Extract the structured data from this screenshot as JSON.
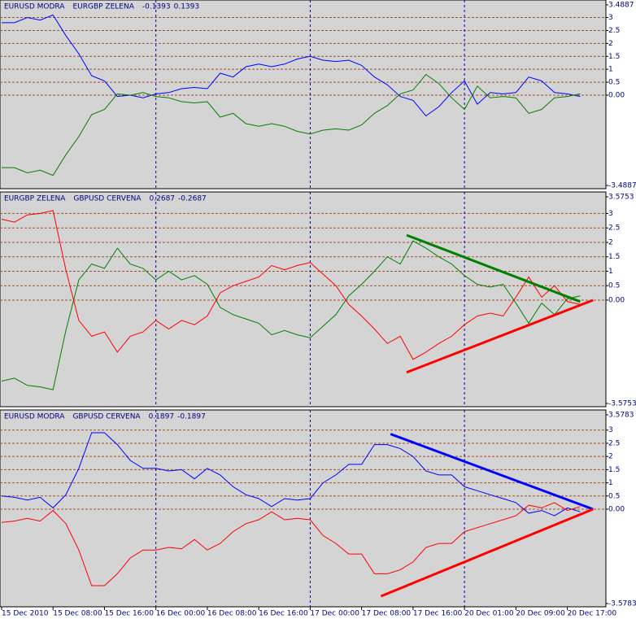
{
  "chart_data": [
    {
      "type": "line",
      "grid": true,
      "x": [
        0,
        2,
        4,
        6,
        8,
        10,
        12,
        14,
        16,
        18,
        20,
        22,
        24,
        26,
        28,
        30,
        32,
        34,
        36,
        38,
        40,
        42,
        44,
        46,
        48,
        50,
        52,
        54,
        56,
        58,
        60,
        62,
        64,
        66,
        68,
        70,
        72,
        74,
        76,
        78,
        80,
        82,
        84,
        86,
        88,
        90
      ],
      "xlim": [
        0,
        94
      ],
      "ylim": [
        -3.4887,
        3.4887
      ],
      "yticks": [
        3.4887,
        3,
        2.5,
        2,
        1.5,
        1,
        0.5,
        {
          "value": 0,
          "label": "0.00"
        },
        -3.4887
      ],
      "separators": [
        24,
        48,
        72
      ],
      "readout": [
        -0.1393,
        0.1393
      ],
      "series": [
        {
          "name": "EURUSD MODRA",
          "color": "#0000ff",
          "values": [
            2.8,
            2.8,
            3.0,
            2.9,
            3.1,
            2.3,
            1.6,
            0.75,
            0.55,
            -0.05,
            0,
            -0.1,
            0.05,
            0.1,
            0.25,
            0.3,
            0.25,
            0.85,
            0.7,
            1.1,
            1.2,
            1.1,
            1.2,
            1.4,
            1.5,
            1.35,
            1.3,
            1.35,
            1.15,
            0.7,
            0.4,
            -0.05,
            -0.2,
            -0.8,
            -0.45,
            0.1,
            0.55,
            -0.35,
            0.1,
            0.05,
            0.1,
            0.7,
            0.55,
            0.1,
            0.05,
            -0.05
          ]
        },
        {
          "name": "EURGBP ZELENA",
          "color": "#008000",
          "values": [
            -2.8,
            -2.8,
            -3.0,
            -2.9,
            -3.1,
            -2.3,
            -1.6,
            -0.75,
            -0.55,
            0.05,
            0,
            0.1,
            -0.05,
            -0.1,
            -0.25,
            -0.3,
            -0.25,
            -0.85,
            -0.7,
            -1.1,
            -1.2,
            -1.1,
            -1.2,
            -1.4,
            -1.5,
            -1.35,
            -1.3,
            -1.35,
            -1.15,
            -0.7,
            -0.4,
            0.05,
            0.2,
            0.8,
            0.45,
            -0.1,
            -0.55,
            0.35,
            -0.1,
            -0.05,
            -0.1,
            -0.7,
            -0.55,
            -0.1,
            -0.05,
            0.05
          ]
        }
      ]
    },
    {
      "type": "line",
      "grid": true,
      "x": [
        0,
        2,
        4,
        6,
        8,
        10,
        12,
        14,
        16,
        18,
        20,
        22,
        24,
        26,
        28,
        30,
        32,
        34,
        36,
        38,
        40,
        42,
        44,
        46,
        48,
        50,
        52,
        54,
        56,
        58,
        60,
        62,
        64,
        66,
        68,
        70,
        72,
        74,
        76,
        78,
        80,
        82,
        84,
        86,
        88,
        90
      ],
      "xlim": [
        0,
        94
      ],
      "ylim": [
        -3.5753,
        3.5753
      ],
      "yticks": [
        3.5753,
        3,
        2.5,
        2,
        1.5,
        1,
        0.5,
        {
          "value": 0,
          "label": "0.00"
        },
        -3.5753
      ],
      "separators": [
        24,
        48,
        72
      ],
      "readout": [
        0.2687,
        -0.2687
      ],
      "series": [
        {
          "name": "EURGBP ZELENA",
          "color": "#008000",
          "values": [
            -2.8,
            -2.7,
            -2.95,
            -3.0,
            -3.1,
            -1.05,
            0.7,
            1.25,
            1.1,
            1.8,
            1.25,
            1.1,
            0.7,
            1.0,
            0.7,
            0.85,
            0.55,
            -0.25,
            -0.5,
            -0.65,
            -0.8,
            -1.2,
            -1.05,
            -1.2,
            -1.3,
            -0.9,
            -0.5,
            0.15,
            0.55,
            1.0,
            1.5,
            1.25,
            2.05,
            1.8,
            1.5,
            1.25,
            0.85,
            0.55,
            0.45,
            0.55,
            -0.1,
            -0.8,
            -0.1,
            -0.5,
            0.05,
            0.15
          ]
        },
        {
          "name": "GBPUSD CERVENA",
          "color": "#ff0000",
          "values": [
            2.8,
            2.7,
            2.95,
            3.0,
            3.1,
            1.05,
            -0.7,
            -1.25,
            -1.1,
            -1.8,
            -1.25,
            -1.1,
            -0.7,
            -1.0,
            -0.7,
            -0.85,
            -0.55,
            0.25,
            0.5,
            0.65,
            0.8,
            1.2,
            1.05,
            1.2,
            1.3,
            0.9,
            0.5,
            -0.15,
            -0.55,
            -1.0,
            -1.5,
            -1.25,
            -2.05,
            -1.8,
            -1.5,
            -1.25,
            -0.85,
            -0.55,
            -0.45,
            -0.55,
            0.1,
            0.8,
            0.1,
            0.5,
            -0.05,
            -0.15
          ]
        }
      ],
      "trendlines": [
        {
          "color": "#008000",
          "x": [
            63,
            90
          ],
          "values": [
            2.25,
            -0.05
          ]
        },
        {
          "color": "#ff0000",
          "x": [
            63,
            92
          ],
          "values": [
            -2.5,
            0
          ]
        }
      ]
    },
    {
      "type": "line",
      "grid": true,
      "x": [
        0,
        2,
        4,
        6,
        8,
        10,
        12,
        14,
        16,
        18,
        20,
        22,
        24,
        26,
        28,
        30,
        32,
        34,
        36,
        38,
        40,
        42,
        44,
        46,
        48,
        50,
        52,
        54,
        56,
        58,
        60,
        62,
        64,
        66,
        68,
        70,
        72,
        74,
        76,
        78,
        80,
        82,
        84,
        86,
        88,
        90
      ],
      "xlim": [
        0,
        94
      ],
      "ylim": [
        -3.5783,
        3.5783
      ],
      "yticks": [
        3.5783,
        3,
        2.5,
        2,
        1.5,
        1,
        0.5,
        {
          "value": 0,
          "label": "0.00"
        },
        -3.5783
      ],
      "separators": [
        24,
        48,
        72
      ],
      "readout": [
        0.1897,
        -0.1897
      ],
      "xticks": [
        {
          "value": 0,
          "label": "15 Dec 2010"
        },
        {
          "value": 8,
          "label": "15 Dec 08:00"
        },
        {
          "value": 16,
          "label": "15 Dec 16:00"
        },
        {
          "value": 24,
          "label": "16 Dec 00:00"
        },
        {
          "value": 32,
          "label": "16 Dec 08:00"
        },
        {
          "value": 40,
          "label": "16 Dec 16:00"
        },
        {
          "value": 48,
          "label": "17 Dec 00:00"
        },
        {
          "value": 56,
          "label": "17 Dec 08:00"
        },
        {
          "value": 64,
          "label": "17 Dec 16:00"
        },
        {
          "value": 72,
          "label": "20 Dec 01:00"
        },
        {
          "value": 80,
          "label": "20 Dec 09:00"
        },
        {
          "value": 88,
          "label": "20 Dec 17:00"
        }
      ],
      "series": [
        {
          "name": "EURUSD MODRA",
          "color": "#0000ff",
          "values": [
            0.5,
            0.45,
            0.35,
            0.45,
            0.05,
            0.55,
            1.55,
            2.9,
            2.9,
            2.45,
            1.85,
            1.55,
            1.55,
            1.45,
            1.5,
            1.15,
            1.55,
            1.3,
            0.85,
            0.55,
            0.4,
            0.1,
            0.4,
            0.35,
            0.4,
            1.0,
            1.3,
            1.7,
            1.7,
            2.45,
            2.45,
            2.3,
            2.0,
            1.45,
            1.3,
            1.3,
            0.85,
            0.7,
            0.55,
            0.4,
            0.25,
            -0.15,
            -0.05,
            -0.25,
            0.05,
            -0.1
          ]
        },
        {
          "name": "GBPUSD CERVENA",
          "color": "#ff0000",
          "values": [
            -0.5,
            -0.45,
            -0.35,
            -0.45,
            -0.05,
            -0.55,
            -1.55,
            -2.9,
            -2.9,
            -2.45,
            -1.85,
            -1.55,
            -1.55,
            -1.45,
            -1.5,
            -1.15,
            -1.55,
            -1.3,
            -0.85,
            -0.55,
            -0.4,
            -0.1,
            -0.4,
            -0.35,
            -0.4,
            -1.0,
            -1.3,
            -1.7,
            -1.7,
            -2.45,
            -2.45,
            -2.3,
            -2.0,
            -1.45,
            -1.3,
            -1.3,
            -0.85,
            -0.7,
            -0.55,
            -0.4,
            -0.25,
            0.15,
            0.05,
            0.25,
            -0.05,
            0.1
          ]
        }
      ],
      "trendlines": [
        {
          "color": "#0000ff",
          "x": [
            60.5,
            92
          ],
          "values": [
            2.85,
            0
          ]
        },
        {
          "color": "#ff0000",
          "x": [
            59,
            92
          ],
          "values": [
            -3.3,
            0
          ]
        }
      ]
    }
  ]
}
